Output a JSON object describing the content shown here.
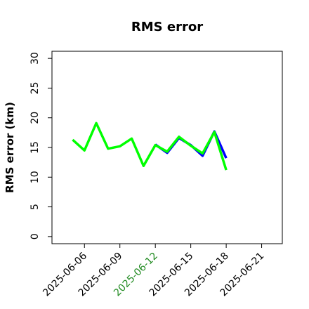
{
  "chart_data": {
    "type": "line",
    "title": "RMS error",
    "y_label": "RMS error (km)",
    "x": [
      "2025-06-05",
      "2025-06-06",
      "2025-06-07",
      "2025-06-08",
      "2025-06-09",
      "2025-06-10",
      "2025-06-11",
      "2025-06-12",
      "2025-06-13",
      "2025-06-14",
      "2025-06-15",
      "2025-06-16",
      "2025-06-17",
      "2025-06-18"
    ],
    "series": [
      {
        "color": "#0000ff",
        "values": [
          null,
          null,
          null,
          null,
          null,
          null,
          null,
          15.5,
          14.1,
          16.6,
          15.4,
          13.6,
          17.7,
          13.2
        ]
      },
      {
        "color": "#00ff00",
        "values": [
          16.3,
          14.5,
          19.1,
          14.8,
          15.2,
          16.5,
          11.9,
          15.4,
          14.3,
          16.8,
          15.3,
          14.0,
          17.6,
          11.2
        ]
      }
    ],
    "xlim": [
      "2025-06-03T06:00",
      "2025-06-22T18:00"
    ],
    "xticks": [
      "2025-06-06",
      "2025-06-09",
      "2025-06-12",
      "2025-06-15",
      "2025-06-18",
      "2025-06-21"
    ],
    "xtick_colors": [
      "#000000",
      "#000000",
      "#228b22",
      "#000000",
      "#000000",
      "#000000"
    ],
    "ylim": [
      -1.2,
      31.2
    ],
    "yticks": [
      0,
      5,
      10,
      15,
      20,
      25,
      30
    ]
  }
}
